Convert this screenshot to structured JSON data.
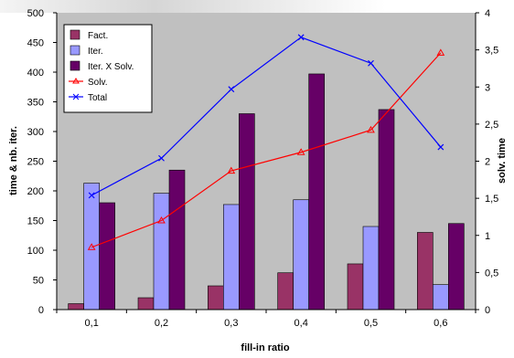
{
  "chart_data": {
    "type": "bar",
    "categories": [
      "0,1",
      "0,2",
      "0,3",
      "0,4",
      "0,5",
      "0,6"
    ],
    "xlabel": "fill-in ratio",
    "ylabel_left": "time & nb. iter.",
    "ylabel_right": "solv. time",
    "ylim_left": [
      0,
      500
    ],
    "ylim_right": [
      0,
      4
    ],
    "yticks_left": [
      "0",
      "50",
      "100",
      "150",
      "200",
      "250",
      "300",
      "350",
      "400",
      "450",
      "500"
    ],
    "yticks_right": [
      "0",
      "0,5",
      "1",
      "1,5",
      "2",
      "2,5",
      "3",
      "3,5",
      "4"
    ],
    "plot_background": "#c0c0c0",
    "grid": false,
    "legend_position": "top-left",
    "series": [
      {
        "name": "Fact.",
        "kind": "bar",
        "axis": "left",
        "color": "#993366",
        "values": [
          10,
          20,
          40,
          62,
          77,
          130
        ]
      },
      {
        "name": "Iter.",
        "kind": "bar",
        "axis": "left",
        "color": "#9999ff",
        "values": [
          213,
          196,
          177,
          185,
          140,
          42
        ]
      },
      {
        "name": "Iter. X Solv.",
        "kind": "bar",
        "axis": "left",
        "color": "#660066",
        "values": [
          180,
          235,
          330,
          397,
          337,
          145
        ]
      },
      {
        "name": "Solv.",
        "kind": "line",
        "axis": "right",
        "color": "#ff0000",
        "marker": "triangle",
        "values": [
          0.84,
          1.2,
          1.87,
          2.12,
          2.42,
          3.46
        ]
      },
      {
        "name": "Total",
        "kind": "line",
        "axis": "right",
        "color": "#0000ff",
        "marker": "x",
        "values": [
          1.54,
          2.04,
          2.97,
          3.67,
          3.32,
          2.19
        ]
      }
    ]
  }
}
